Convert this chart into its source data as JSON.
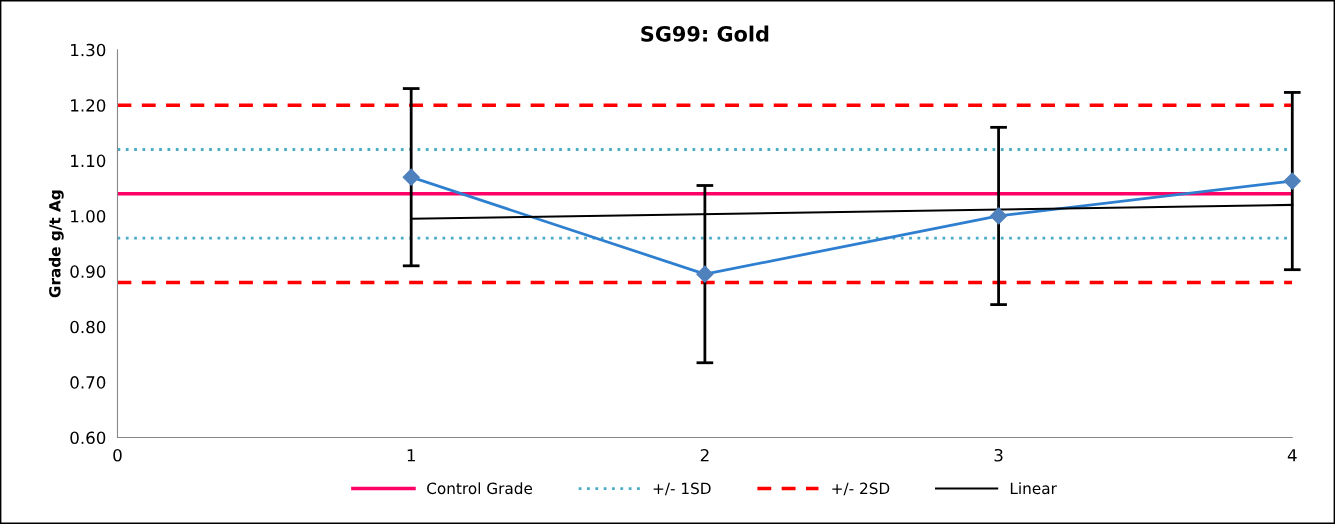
{
  "chart_data": {
    "type": "line",
    "title": "SG99: Gold",
    "ylabel": "Grade g/t Ag",
    "xlim": [
      0,
      4
    ],
    "xticks": [
      0,
      1,
      2,
      3,
      4
    ],
    "ylim": [
      0.6,
      1.3
    ],
    "yticks": [
      {
        "value": 0.6,
        "label": "0.60"
      },
      {
        "value": 0.7,
        "label": "0.70"
      },
      {
        "value": 0.8,
        "label": "0.80"
      },
      {
        "value": 0.9,
        "label": "0.90"
      },
      {
        "value": 1.0,
        "label": "1.00"
      },
      {
        "value": 1.1,
        "label": "1.10"
      },
      {
        "value": 1.2,
        "label": "1.20"
      },
      {
        "value": 1.3,
        "label": "1.30"
      }
    ],
    "grid": false,
    "legend": "bottom",
    "series": [
      {
        "color": "#2e7fcf",
        "marker": "diamond",
        "x": [
          1,
          2,
          3,
          4
        ],
        "values": [
          1.07,
          0.895,
          1.0,
          1.063
        ],
        "errors": [
          0.16,
          0.16,
          0.16,
          0.16
        ]
      },
      {
        "name": "Linear",
        "color": "#000000",
        "marker": "none",
        "x": [
          1,
          4
        ],
        "values": [
          0.995,
          1.02
        ]
      }
    ],
    "ref_lines": [
      {
        "axis": "y",
        "value": 1.04,
        "label": "Control Grade",
        "color": "#ff0066",
        "line_style": "solid"
      },
      {
        "axis": "y",
        "value": 1.12,
        "label": "+/- 1SD",
        "color": "#4bacc6",
        "line_style": "dotted"
      },
      {
        "axis": "y",
        "value": 0.96,
        "color": "#4bacc6",
        "line_style": "dotted"
      },
      {
        "axis": "y",
        "value": 1.2,
        "label": "+/- 2SD",
        "color": "#ff0000",
        "line_style": "dashed"
      },
      {
        "axis": "y",
        "value": 0.88,
        "color": "#ff0000",
        "line_style": "dashed"
      }
    ]
  }
}
